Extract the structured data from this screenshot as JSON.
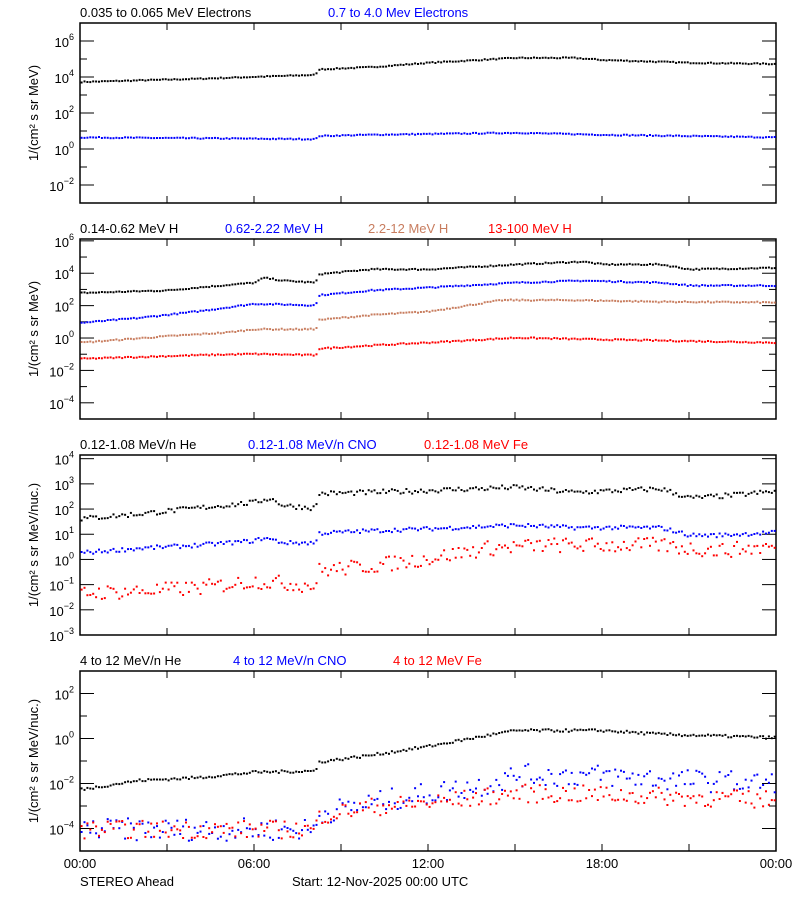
{
  "footer": {
    "spacecraft": "STEREO Ahead",
    "start": "Start: 12-Nov-2025 00:00 UTC"
  },
  "chart_data": [
    {
      "type": "scatter",
      "x_unit": "hour of day",
      "xlim": [
        0,
        24
      ],
      "x_ticks": [
        "00:00",
        "06:00",
        "12:00",
        "18:00",
        "00:00"
      ],
      "y_scale": "log",
      "ylim": [
        0.001,
        10000000.0
      ],
      "y_tick_exponents": [
        6,
        4,
        2,
        0,
        -2
      ],
      "ylabel": "1/(cm² s sr MeV)",
      "series": [
        {
          "name": "0.035 to 0.065 MeV Electrons",
          "color": "#000000",
          "points": [
            [
              0,
              6000.0
            ],
            [
              4,
              9000.0
            ],
            [
              8.1,
              15000.0
            ],
            [
              8.2,
              30000.0
            ],
            [
              10,
              40000.0
            ],
            [
              12,
              70000.0
            ],
            [
              15,
              130000.0
            ],
            [
              17,
              130000.0
            ],
            [
              18,
              100000.0
            ],
            [
              21,
              70000.0
            ],
            [
              24,
              60000.0
            ]
          ]
        },
        {
          "name": "0.7 to 4.0 Mev Electrons",
          "color": "#0000ff",
          "points": [
            [
              0,
              5
            ],
            [
              8.1,
              4
            ],
            [
              8.2,
              6
            ],
            [
              10,
              7
            ],
            [
              15,
              9
            ],
            [
              18,
              7
            ],
            [
              24,
              5
            ]
          ]
        }
      ]
    },
    {
      "type": "scatter",
      "xlim": [
        0,
        24
      ],
      "x_ticks": [
        "00:00",
        "06:00",
        "12:00",
        "18:00",
        "00:00"
      ],
      "y_scale": "log",
      "ylim": [
        1e-05,
        1300000.0
      ],
      "y_tick_exponents": [
        6,
        4,
        2,
        0,
        -2,
        -4
      ],
      "ylabel": "1/(cm² s sr MeV)",
      "series": [
        {
          "name": "0.14-0.62 MeV H",
          "color": "#000000",
          "points": [
            [
              0,
              700.0
            ],
            [
              3,
              1000.0
            ],
            [
              4,
              1500.0
            ],
            [
              6,
              3000.0
            ],
            [
              6.3,
              6000.0
            ],
            [
              7,
              4000.0
            ],
            [
              8.1,
              3000.0
            ],
            [
              8.2,
              10000.0
            ],
            [
              10,
              20000.0
            ],
            [
              12,
              20000.0
            ],
            [
              15,
              40000.0
            ],
            [
              17.3,
              60000.0
            ],
            [
              18,
              40000.0
            ],
            [
              20,
              40000.0
            ],
            [
              21,
              20000.0
            ],
            [
              24,
              25000.0
            ]
          ]
        },
        {
          "name": "0.62-2.22 MeV H",
          "color": "#0000ff",
          "points": [
            [
              0,
              10
            ],
            [
              2,
              20
            ],
            [
              4,
              50
            ],
            [
              6,
              150
            ],
            [
              8.1,
              120
            ],
            [
              8.2,
              500
            ],
            [
              10,
              1000.0
            ],
            [
              12,
              1500.0
            ],
            [
              15,
              3000.0
            ],
            [
              17.3,
              4000.0
            ],
            [
              20,
              3000.0
            ],
            [
              21,
              2000.0
            ],
            [
              24,
              2000.0
            ]
          ]
        },
        {
          "name": "2.2-12 MeV H",
          "color": "#c87d5f",
          "points": [
            [
              0,
              0.6
            ],
            [
              3,
              1.5
            ],
            [
              5,
              2.5
            ],
            [
              6,
              4
            ],
            [
              8.1,
              4
            ],
            [
              8.2,
              15
            ],
            [
              10,
              30
            ],
            [
              12,
              50
            ],
            [
              14.5,
              250
            ],
            [
              17,
              250
            ],
            [
              20,
              200
            ],
            [
              24,
              180
            ]
          ]
        },
        {
          "name": "13-100 MeV H",
          "color": "#ff0000",
          "points": [
            [
              0,
              0.06
            ],
            [
              4,
              0.1
            ],
            [
              6,
              0.12
            ],
            [
              8.1,
              0.1
            ],
            [
              8.2,
              0.25
            ],
            [
              10,
              0.4
            ],
            [
              12,
              0.6
            ],
            [
              15,
              1.2
            ],
            [
              17,
              1
            ],
            [
              20,
              0.8
            ],
            [
              24,
              0.6
            ]
          ]
        }
      ]
    },
    {
      "type": "scatter",
      "xlim": [
        0,
        24
      ],
      "x_ticks": [
        "00:00",
        "06:00",
        "12:00",
        "18:00",
        "00:00"
      ],
      "y_scale": "log",
      "ylim": [
        0.001,
        14000.0
      ],
      "y_tick_exponents": [
        4,
        3,
        2,
        1,
        0,
        -1,
        -2,
        -3
      ],
      "ylabel": "1/(cm² s sr MeV/nuc.)",
      "series": [
        {
          "name": "0.12-1.08 MeV/n He",
          "color": "#000000",
          "points": [
            [
              0,
              45
            ],
            [
              2,
              70
            ],
            [
              4,
              120
            ],
            [
              6,
              200
            ],
            [
              6.5,
              300
            ],
            [
              7,
              150
            ],
            [
              8.1,
              120
            ],
            [
              8.2,
              450
            ],
            [
              10,
              500
            ],
            [
              12,
              600
            ],
            [
              15,
              800
            ],
            [
              17,
              500
            ],
            [
              20,
              700
            ],
            [
              21,
              300
            ],
            [
              22,
              350
            ],
            [
              24,
              550
            ]
          ]
        },
        {
          "name": "0.12-1.08 MeV/n CNO",
          "color": "#0000ff",
          "points": [
            [
              0,
              2
            ],
            [
              2,
              3
            ],
            [
              4,
              4
            ],
            [
              6,
              6
            ],
            [
              6.3,
              8
            ],
            [
              7,
              5
            ],
            [
              8.1,
              5
            ],
            [
              8.2,
              12
            ],
            [
              10,
              15
            ],
            [
              12,
              18
            ],
            [
              15,
              25
            ],
            [
              17,
              20
            ],
            [
              20,
              20
            ],
            [
              21,
              10
            ],
            [
              22,
              10
            ],
            [
              24,
              13
            ]
          ]
        },
        {
          "name": "0.12-1.08 MeV Fe",
          "color": "#ff0000",
          "points": [
            [
              0,
              0.05
            ],
            [
              2,
              0.06
            ],
            [
              4,
              0.08
            ],
            [
              6,
              0.15
            ],
            [
              8.1,
              0.1
            ],
            [
              8.2,
              0.4
            ],
            [
              10,
              0.6
            ],
            [
              12,
              1.2
            ],
            [
              14,
              3
            ],
            [
              16,
              4
            ],
            [
              20,
              4
            ],
            [
              21,
              3
            ],
            [
              22,
              2.5
            ],
            [
              24,
              3.5
            ]
          ]
        }
      ]
    },
    {
      "type": "scatter",
      "xlim": [
        0,
        24
      ],
      "x_ticks": [
        "00:00",
        "06:00",
        "12:00",
        "18:00",
        "00:00"
      ],
      "y_scale": "log",
      "ylim": [
        1e-05,
        1000.0
      ],
      "y_tick_exponents": [
        2,
        0,
        -2,
        -4
      ],
      "ylabel": "1/(cm² s sr MeV/nuc.)",
      "series": [
        {
          "name": "4 to 12 MeV/n He",
          "color": "#000000",
          "points": [
            [
              0,
              0.006
            ],
            [
              2,
              0.015
            ],
            [
              4,
              0.02
            ],
            [
              6,
              0.035
            ],
            [
              8.1,
              0.04
            ],
            [
              8.2,
              0.1
            ],
            [
              10,
              0.2
            ],
            [
              12,
              0.5
            ],
            [
              14,
              1.5
            ],
            [
              15,
              2.5
            ],
            [
              18,
              2.5
            ],
            [
              20,
              1.7
            ],
            [
              24,
              1.2
            ]
          ]
        },
        {
          "name": "4 to 12 MeV/n CNO",
          "color": "#0000ff",
          "points": [
            [
              0,
              0.0001
            ],
            [
              8.1,
              0.0001
            ],
            [
              8.2,
              0.0005
            ],
            [
              10,
              0.0015
            ],
            [
              12,
              0.004
            ],
            [
              14,
              0.01
            ],
            [
              15,
              0.025
            ],
            [
              18,
              0.025
            ],
            [
              21,
              0.015
            ],
            [
              24,
              0.011
            ]
          ]
        },
        {
          "name": "4 to 12 MeV Fe",
          "color": "#ff0000",
          "points": [
            [
              0,
              0.0001
            ],
            [
              8.1,
              0.0001
            ],
            [
              8.2,
              0.0004
            ],
            [
              10,
              0.001
            ],
            [
              12,
              0.0015
            ],
            [
              15,
              0.004
            ],
            [
              18,
              0.0035
            ],
            [
              24,
              0.002
            ]
          ]
        }
      ]
    }
  ]
}
